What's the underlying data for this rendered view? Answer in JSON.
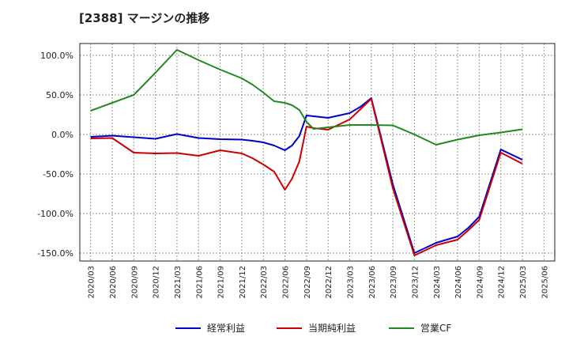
{
  "title": "[2388]  マージンの推移",
  "chart_data": {
    "type": "line",
    "x": [
      "2020/03",
      "2020/06",
      "2020/09",
      "2020/12",
      "2021/03",
      "2021/06",
      "2021/09",
      "2021/12",
      "2022/03",
      "2022/06",
      "2022/09",
      "2022/12",
      "2023/03",
      "2023/06",
      "2023/09",
      "2023/12",
      "2024/03",
      "2024/06",
      "2024/09",
      "2024/12",
      "2025/03",
      "2025/06"
    ],
    "ylim": [
      -160,
      115
    ],
    "yticks": [
      100,
      50,
      0,
      -50,
      -100,
      -150
    ],
    "ytick_labels": [
      "100.0%",
      "50.0%",
      "0.0%",
      "-50.0%",
      "-100.0%",
      "-150.0%"
    ],
    "grid": true,
    "legend_position": "bottom",
    "series": [
      {
        "name": "経常利益",
        "color": "#0000cc",
        "points": [
          [
            0,
            -3
          ],
          [
            1,
            -1.5
          ],
          [
            2,
            -3.5
          ],
          [
            3,
            -5.5
          ],
          [
            4,
            0.5
          ],
          [
            5,
            -4.5
          ],
          [
            6,
            -6
          ],
          [
            7,
            -6.5
          ],
          [
            7.5,
            -8
          ],
          [
            8,
            -10
          ],
          [
            8.5,
            -14
          ],
          [
            9,
            -20
          ],
          [
            9.33,
            -14
          ],
          [
            9.67,
            -2
          ],
          [
            10,
            24
          ],
          [
            10.33,
            23
          ],
          [
            11,
            21
          ],
          [
            12,
            27
          ],
          [
            12.5,
            35
          ],
          [
            13,
            46
          ],
          [
            14,
            -63
          ],
          [
            15,
            -150
          ],
          [
            16,
            -137
          ],
          [
            17,
            -129
          ],
          [
            17.5,
            -118
          ],
          [
            18,
            -104
          ],
          [
            19,
            -19
          ],
          [
            20,
            -32
          ]
        ]
      },
      {
        "name": "当期純利益",
        "color": "#cc0000",
        "points": [
          [
            0,
            -5
          ],
          [
            1,
            -4.5
          ],
          [
            2,
            -23
          ],
          [
            3,
            -24
          ],
          [
            4,
            -23.5
          ],
          [
            5,
            -27
          ],
          [
            6,
            -20
          ],
          [
            7,
            -24
          ],
          [
            7.5,
            -30
          ],
          [
            8,
            -38
          ],
          [
            8.5,
            -47
          ],
          [
            9,
            -70
          ],
          [
            9.33,
            -56
          ],
          [
            9.67,
            -34
          ],
          [
            10,
            10
          ],
          [
            10.33,
            8
          ],
          [
            11,
            6
          ],
          [
            12,
            19
          ],
          [
            12.5,
            32
          ],
          [
            13,
            45
          ],
          [
            14,
            -68
          ],
          [
            15,
            -153
          ],
          [
            16,
            -140
          ],
          [
            17,
            -133
          ],
          [
            17.5,
            -121
          ],
          [
            18,
            -108
          ],
          [
            19,
            -23
          ],
          [
            20,
            -37
          ]
        ]
      },
      {
        "name": "営業CF",
        "color": "#228822",
        "points": [
          [
            0,
            30
          ],
          [
            1,
            40
          ],
          [
            2,
            50
          ],
          [
            3,
            78
          ],
          [
            4,
            107
          ],
          [
            5,
            94
          ],
          [
            6,
            82
          ],
          [
            7,
            71
          ],
          [
            7.5,
            63
          ],
          [
            8,
            53
          ],
          [
            8.5,
            42
          ],
          [
            9,
            40
          ],
          [
            9.33,
            37
          ],
          [
            9.67,
            31
          ],
          [
            10,
            16
          ],
          [
            10.33,
            7
          ],
          [
            11,
            9
          ],
          [
            12,
            12
          ],
          [
            12.5,
            12
          ],
          [
            13,
            12
          ],
          [
            14,
            11.5
          ],
          [
            15,
            0
          ],
          [
            16,
            -13
          ],
          [
            17,
            -6.5
          ],
          [
            18,
            -1
          ],
          [
            19,
            2.5
          ],
          [
            20,
            6.5
          ]
        ]
      }
    ]
  }
}
